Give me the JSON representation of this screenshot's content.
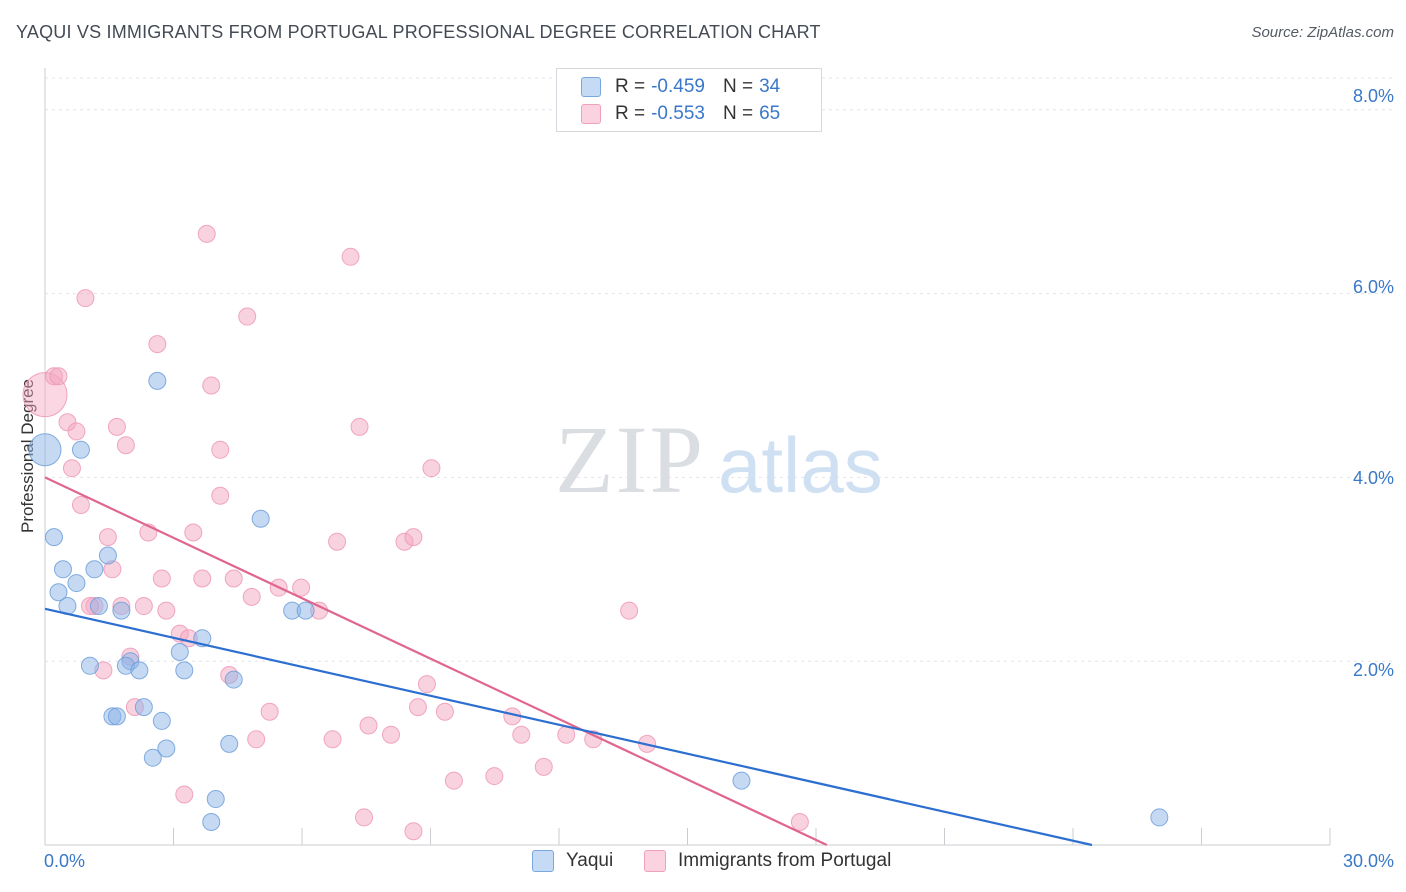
{
  "title": "YAQUI VS IMMIGRANTS FROM PORTUGAL PROFESSIONAL DEGREE CORRELATION CHART",
  "source": "Source: ZipAtlas.com",
  "watermark": {
    "zip": "ZIP",
    "atlas": "atlas"
  },
  "legend": {
    "yaqui": {
      "r_label": "R =",
      "r_value": "-0.459",
      "n_label": "N =",
      "n_value": "34"
    },
    "portugal": {
      "r_label": "R =",
      "r_value": "-0.553",
      "n_label": "N =",
      "n_value": "65"
    }
  },
  "chart_data": {
    "type": "scatter",
    "title": "YAQUI VS IMMIGRANTS FROM PORTUGAL PROFESSIONAL DEGREE CORRELATION CHART",
    "xlabel": "",
    "ylabel": "Professional Degree",
    "xlim": [
      0,
      30
    ],
    "ylim": [
      0,
      8.4
    ],
    "x_tick_labels": [
      "0.0%",
      "30.0%"
    ],
    "y_ticks": [
      2,
      4,
      6,
      8
    ],
    "y_tick_labels": [
      "2.0%",
      "4.0%",
      "6.0%",
      "8.0%"
    ],
    "grid": true,
    "legend_position": "top-center",
    "colors": {
      "yaqui": "#8bb4e8",
      "yaqui_line": "#2d6fd0",
      "portugal": "#f3a6c0",
      "portugal_line": "#e0668f"
    },
    "series": [
      {
        "name": "Yaqui",
        "points": [
          [
            0.0,
            4.3
          ],
          [
            0.2,
            3.35
          ],
          [
            0.8,
            4.3
          ],
          [
            0.3,
            2.75
          ],
          [
            0.4,
            3.0
          ],
          [
            0.7,
            2.85
          ],
          [
            0.5,
            2.6
          ],
          [
            1.1,
            3.0
          ],
          [
            1.4,
            3.15
          ],
          [
            1.2,
            2.6
          ],
          [
            1.7,
            2.55
          ],
          [
            2.5,
            5.05
          ],
          [
            3.5,
            2.25
          ],
          [
            3.0,
            2.1
          ],
          [
            1.9,
            2.0
          ],
          [
            1.8,
            1.95
          ],
          [
            2.1,
            1.9
          ],
          [
            3.1,
            1.9
          ],
          [
            1.0,
            1.95
          ],
          [
            1.5,
            1.4
          ],
          [
            1.6,
            1.4
          ],
          [
            2.2,
            1.5
          ],
          [
            2.6,
            1.35
          ],
          [
            2.7,
            1.05
          ],
          [
            2.4,
            0.95
          ],
          [
            4.2,
            1.8
          ],
          [
            4.8,
            3.55
          ],
          [
            5.5,
            2.55
          ],
          [
            5.8,
            2.55
          ],
          [
            4.1,
            1.1
          ],
          [
            3.8,
            0.5
          ],
          [
            3.7,
            0.25
          ],
          [
            15.5,
            0.7
          ],
          [
            24.8,
            0.3
          ]
        ],
        "trend": {
          "x": [
            0,
            23.3
          ],
          "y": [
            2.57,
            0.0
          ]
        }
      },
      {
        "name": "Immigrants from Portugal",
        "points": [
          [
            0.0,
            4.9
          ],
          [
            0.2,
            5.1
          ],
          [
            0.3,
            5.1
          ],
          [
            0.5,
            4.6
          ],
          [
            0.7,
            4.5
          ],
          [
            0.6,
            4.1
          ],
          [
            0.8,
            3.7
          ],
          [
            1.1,
            2.6
          ],
          [
            1.4,
            3.35
          ],
          [
            1.5,
            3.0
          ],
          [
            1.6,
            4.55
          ],
          [
            1.8,
            4.35
          ],
          [
            2.3,
            3.4
          ],
          [
            2.6,
            2.9
          ],
          [
            2.2,
            2.6
          ],
          [
            2.7,
            2.55
          ],
          [
            2.5,
            5.45
          ],
          [
            1.7,
            2.6
          ],
          [
            1.9,
            2.05
          ],
          [
            1.3,
            1.9
          ],
          [
            2.0,
            1.5
          ],
          [
            3.0,
            2.3
          ],
          [
            3.2,
            2.25
          ],
          [
            3.3,
            3.4
          ],
          [
            3.5,
            2.9
          ],
          [
            3.6,
            6.65
          ],
          [
            3.7,
            5.0
          ],
          [
            3.9,
            4.3
          ],
          [
            3.9,
            3.8
          ],
          [
            4.2,
            2.9
          ],
          [
            4.5,
            5.75
          ],
          [
            4.6,
            2.7
          ],
          [
            5.2,
            2.8
          ],
          [
            5.7,
            2.8
          ],
          [
            4.1,
            1.85
          ],
          [
            4.7,
            1.15
          ],
          [
            5.0,
            1.45
          ],
          [
            3.1,
            0.55
          ],
          [
            6.1,
            2.55
          ],
          [
            6.5,
            3.3
          ],
          [
            6.8,
            6.4
          ],
          [
            7.0,
            4.55
          ],
          [
            6.4,
            1.15
          ],
          [
            7.2,
            1.3
          ],
          [
            7.7,
            1.2
          ],
          [
            8.0,
            3.3
          ],
          [
            8.2,
            3.35
          ],
          [
            8.6,
            4.1
          ],
          [
            8.5,
            1.75
          ],
          [
            8.3,
            1.5
          ],
          [
            8.9,
            1.45
          ],
          [
            9.1,
            0.7
          ],
          [
            10.0,
            0.75
          ],
          [
            10.4,
            1.4
          ],
          [
            10.6,
            1.2
          ],
          [
            11.1,
            0.85
          ],
          [
            11.6,
            1.2
          ],
          [
            12.2,
            1.15
          ],
          [
            13.0,
            2.55
          ],
          [
            13.4,
            1.1
          ],
          [
            16.8,
            0.25
          ],
          [
            7.1,
            0.3
          ],
          [
            8.2,
            0.15
          ],
          [
            1.0,
            2.6
          ],
          [
            0.9,
            5.95
          ]
        ],
        "trend": {
          "x": [
            0,
            17.4
          ],
          "y": [
            4.0,
            0.0
          ]
        }
      }
    ]
  }
}
